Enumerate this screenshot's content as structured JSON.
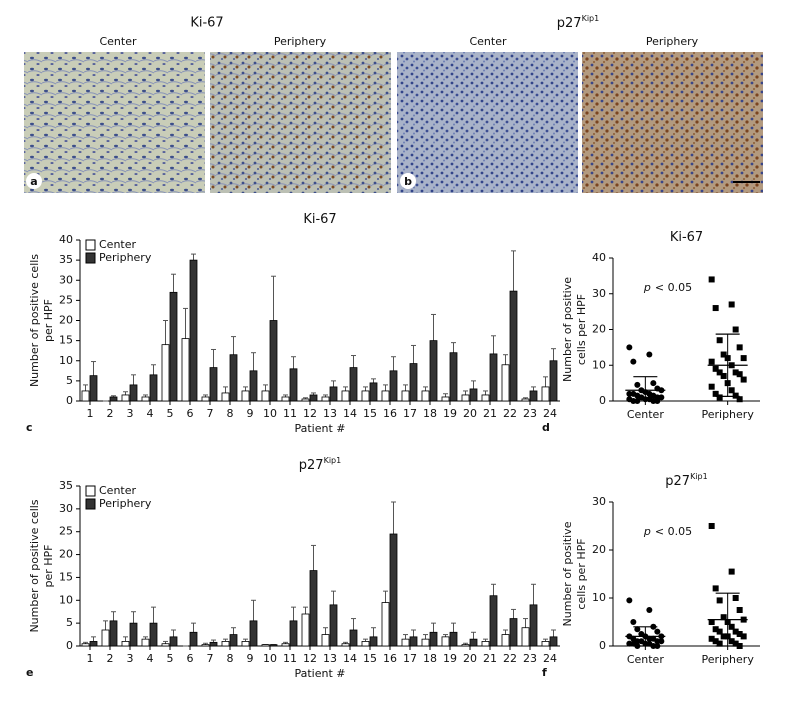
{
  "micrographs": {
    "titles": [
      {
        "text": "Ki-67"
      },
      {
        "text": "p27",
        "superscript": "Kip1"
      }
    ],
    "subpanel_labels": [
      "Center",
      "Periphery",
      "Center",
      "Periphery"
    ],
    "panel_labels": [
      "a",
      "b"
    ]
  },
  "chart_data": [
    {
      "type": "bar",
      "panel_label": "c",
      "title": "Ki-67",
      "y_label": [
        "Number of positive cells",
        "per HPF"
      ],
      "x_label": "Patient #",
      "categories": [
        "1",
        "2",
        "3",
        "4",
        "5",
        "6",
        "7",
        "8",
        "9",
        "10",
        "11",
        "12",
        "13",
        "14",
        "15",
        "16",
        "17",
        "18",
        "19",
        "20",
        "21",
        "22",
        "23",
        "24"
      ],
      "series": [
        {
          "name": "Center",
          "color": "#ffffff",
          "values": [
            2.5,
            0,
            1.5,
            1,
            14,
            15.5,
            1,
            2,
            2.5,
            2.5,
            1,
            0.5,
            1,
            2.5,
            2.5,
            2.5,
            2.5,
            2.5,
            1,
            1.5,
            1.5,
            9,
            0.5,
            3.5
          ],
          "errors": [
            1.5,
            0,
            0.8,
            0.5,
            6,
            7.5,
            0.5,
            1.5,
            1,
            1.5,
            0.5,
            0.3,
            0.5,
            1,
            1,
            1.5,
            1.5,
            1,
            0.8,
            1,
            1,
            2.5,
            0.3,
            2.5
          ]
        },
        {
          "name": "Periphery",
          "color": "#333333",
          "values": [
            6.3,
            1,
            4,
            6.5,
            27,
            35,
            8.3,
            11.5,
            7.5,
            20,
            8,
            1.5,
            3.5,
            8.3,
            4.5,
            7.5,
            9.3,
            15,
            12,
            3,
            11.7,
            27.3,
            2.5,
            10
          ],
          "errors": [
            3.5,
            0.3,
            2.5,
            2.5,
            4.5,
            1.5,
            4.5,
            4.5,
            4.5,
            11,
            3,
            0.5,
            1.5,
            3,
            1,
            3.5,
            4.5,
            6.5,
            2.5,
            2,
            4.5,
            10,
            1,
            3
          ]
        }
      ],
      "ylim": [
        0,
        40
      ],
      "yticks": [
        0,
        5,
        10,
        15,
        20,
        25,
        30,
        35,
        40
      ],
      "legend": "upper left"
    },
    {
      "type": "scatter",
      "panel_label": "d",
      "title": "Ki-67",
      "y_label": [
        "Number of positive",
        "cells per HPF"
      ],
      "categories": [
        "Center",
        "Periphery"
      ],
      "groups": [
        {
          "marker": "circle",
          "color": "#000000",
          "mean": 3,
          "sd": 3.8,
          "values": [
            15,
            13,
            11,
            5,
            4.5,
            3.5,
            3,
            3,
            2.5,
            2,
            2,
            2,
            1.5,
            1.5,
            1,
            1,
            1,
            0.5,
            0.5,
            0.5,
            0,
            0,
            0,
            0
          ]
        },
        {
          "marker": "square",
          "color": "#000000",
          "mean": 10,
          "sd": 8.7,
          "values": [
            34,
            27,
            26,
            20,
            17,
            15,
            13,
            12,
            12,
            11,
            10,
            9,
            8,
            8,
            7.5,
            7,
            6,
            5,
            4,
            3,
            2,
            1.5,
            1,
            0.5
          ]
        }
      ],
      "ylim": [
        0,
        40
      ],
      "yticks": [
        0,
        10,
        20,
        30,
        40
      ],
      "annotation": {
        "symbol": "p",
        "text": "< 0.05"
      }
    },
    {
      "type": "bar",
      "panel_label": "e",
      "title": "p27",
      "title_superscript": "Kip1",
      "y_label": [
        "Number of positive cells",
        "per HPF"
      ],
      "x_label": "Patient #",
      "categories": [
        "1",
        "2",
        "3",
        "4",
        "5",
        "6",
        "7",
        "8",
        "9",
        "10",
        "11",
        "12",
        "13",
        "14",
        "15",
        "16",
        "17",
        "18",
        "19",
        "20",
        "21",
        "22",
        "23",
        "24"
      ],
      "series": [
        {
          "name": "Center",
          "color": "#ffffff",
          "values": [
            0.5,
            3.5,
            1,
            1.5,
            0.5,
            0,
            0.3,
            1,
            1,
            0.3,
            0.5,
            7,
            2.5,
            0.5,
            1,
            9.5,
            1.5,
            1.5,
            2,
            0.3,
            1,
            2.5,
            4,
            1
          ],
          "errors": [
            0.3,
            2,
            1,
            0.5,
            0.5,
            0,
            0.3,
            0.5,
            0.5,
            0,
            0.3,
            1.5,
            1.5,
            0.3,
            0.5,
            2.5,
            1,
            1,
            0.5,
            0.3,
            0.5,
            1,
            2,
            0.5
          ]
        },
        {
          "name": "Periphery",
          "color": "#333333",
          "values": [
            1,
            5.5,
            5,
            5,
            2,
            3,
            0.8,
            2.5,
            5.5,
            0.3,
            5.5,
            16.5,
            9,
            3.5,
            2,
            24.5,
            2,
            3,
            3,
            1.5,
            11,
            6,
            9,
            2
          ],
          "errors": [
            1,
            2,
            2.5,
            3.5,
            1.5,
            2,
            0.5,
            1.5,
            4.5,
            0,
            3,
            5.5,
            3,
            2.5,
            2,
            7,
            1.5,
            2,
            2,
            1.5,
            2.5,
            2,
            4.5,
            1.5
          ]
        }
      ],
      "ylim": [
        0,
        35
      ],
      "yticks": [
        0,
        5,
        10,
        15,
        20,
        25,
        30,
        35
      ],
      "legend": "upper left"
    },
    {
      "type": "scatter",
      "panel_label": "f",
      "title": "p27",
      "title_superscript": "Kip1",
      "y_label": [
        "Number of positive",
        "cells per HPF"
      ],
      "categories": [
        "Center",
        "Periphery"
      ],
      "groups": [
        {
          "marker": "circle",
          "color": "#000000",
          "mean": 2,
          "sd": 2,
          "values": [
            9.5,
            7.5,
            5,
            4,
            3.5,
            3,
            2.5,
            2,
            2,
            2,
            1.5,
            1.5,
            1.5,
            1,
            1,
            1,
            1,
            0.5,
            0.5,
            0.5,
            0.5,
            0,
            0,
            0
          ]
        },
        {
          "marker": "square",
          "color": "#000000",
          "mean": 5.5,
          "sd": 5.5,
          "values": [
            25,
            15.5,
            12,
            10,
            9.5,
            7.5,
            6,
            5.5,
            5,
            5,
            4,
            3.5,
            3,
            3,
            2.5,
            2,
            2,
            2,
            1.5,
            1,
            1,
            0.5,
            0.5,
            0
          ]
        }
      ],
      "ylim": [
        0,
        30
      ],
      "yticks": [
        0,
        10,
        20,
        30
      ],
      "annotation": {
        "symbol": "p",
        "text": "< 0.05"
      }
    }
  ]
}
